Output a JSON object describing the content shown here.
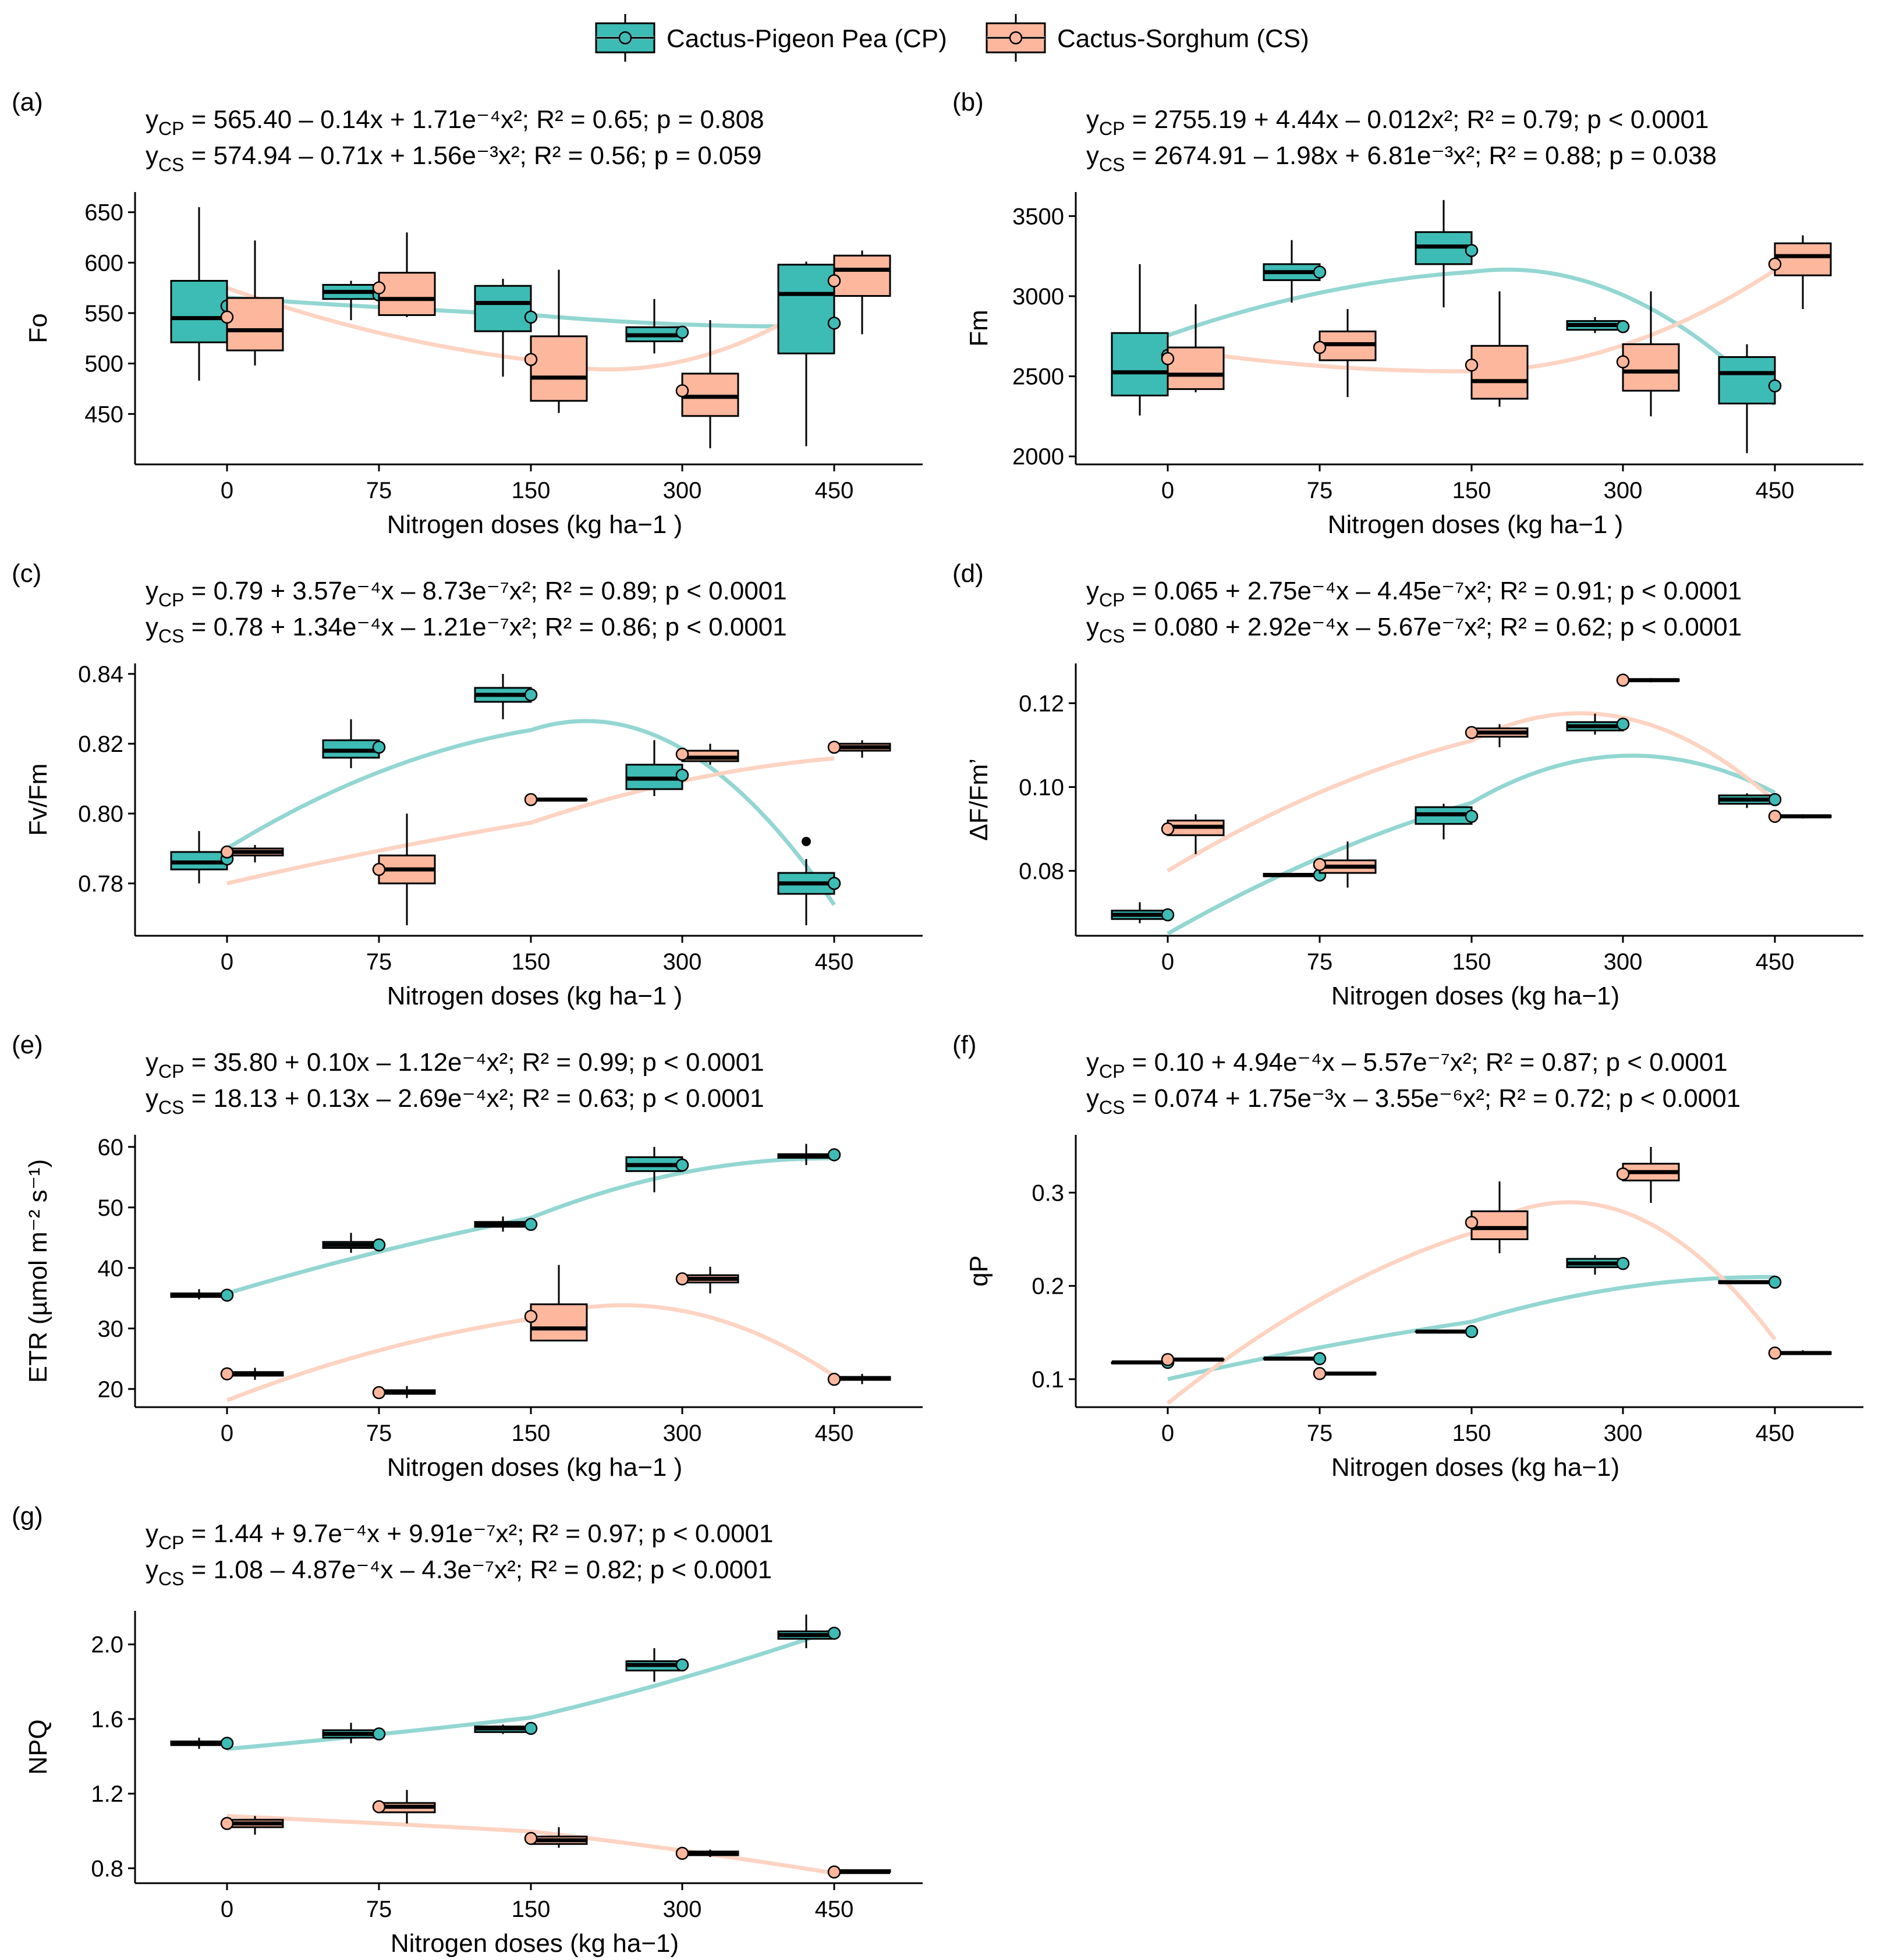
{
  "colors": {
    "cp": "#3dbcb5",
    "cp_dark": "#1f8f8a",
    "cs": "#fcb79d",
    "cs_dark": "#f6a386",
    "cp_line": "#93d6d2",
    "cs_line": "#fdd3c2"
  },
  "legend": {
    "cp": {
      "label": "Cactus-Pigeon Pea (CP)"
    },
    "cs": {
      "label": "Cactus-Sorghum (CS)"
    }
  },
  "chart_data": [
    {
      "id": "a",
      "type": "boxplot",
      "panel_label": "(a)",
      "ylabel": "Fo",
      "xlabel": "Nitrogen doses (kg ha−1 )",
      "categories": [
        "0",
        "75",
        "150",
        "300",
        "450"
      ],
      "ylim": [
        400,
        670
      ],
      "yticks": [
        "450",
        "500",
        "550",
        "600",
        "650"
      ],
      "eq_cp": {
        "y": "y",
        "sub": "CP",
        "text": " = 565.40 – 0.14x + 1.71e⁻⁴x²; R² = 0.65; p = 0.808"
      },
      "eq_cs": {
        "y": "y",
        "sub": "CS",
        "text": " = 574.94 – 0.71x + 1.56e⁻³x²; R² = 0.56; p = 0.059"
      },
      "series": [
        {
          "name": "CP",
          "boxes": [
            [
              483,
              521,
              545,
              582,
              655
            ],
            [
              543,
              564,
              571,
              578,
              582
            ],
            [
              487,
              532,
              560,
              577,
              584
            ],
            [
              510,
              522,
              528,
              536,
              564
            ],
            [
              418,
              510,
              569,
              598,
              601
            ]
          ],
          "means": [
            557,
            568,
            546,
            531,
            540
          ],
          "outliers": []
        },
        {
          "name": "CS",
          "boxes": [
            [
              498,
              513,
              533,
              565,
              622
            ],
            [
              546,
              548,
              564,
              590,
              630
            ],
            [
              451,
              463,
              486,
              527,
              593
            ],
            [
              416,
              448,
              467,
              490,
              543
            ],
            [
              529,
              567,
              593,
              607,
              612
            ]
          ],
          "means": [
            546,
            575,
            504,
            473,
            582
          ],
          "outliers": []
        }
      ],
      "fits": {
        "cp": [
          565.4,
          -0.14,
          0.000171
        ],
        "cs": [
          574.94,
          -0.71,
          0.00156
        ]
      }
    },
    {
      "id": "b",
      "type": "boxplot",
      "panel_label": "(b)",
      "ylabel": "Fm",
      "xlabel": "Nitrogen doses (kg ha−1 )",
      "categories": [
        "0",
        "75",
        "150",
        "300",
        "450"
      ],
      "ylim": [
        1950,
        3650
      ],
      "yticks": [
        "2000",
        "2500",
        "3000",
        "3500"
      ],
      "eq_cp": {
        "y": "y",
        "sub": "CP",
        "text": " = 2755.19 + 4.44x – 0.012x²; R² = 0.79; p < 0.0001"
      },
      "eq_cs": {
        "y": "y",
        "sub": "CS",
        "text": " = 2674.91 – 1.98x + 6.81e⁻³x²; R² = 0.88; p = 0.038"
      },
      "series": [
        {
          "name": "CP",
          "boxes": [
            [
              2255,
              2380,
              2525,
              2770,
              3200
            ],
            [
              2960,
              3100,
              3150,
              3200,
              3350
            ],
            [
              2930,
              3200,
              3310,
              3400,
              3600
            ],
            [
              2770,
              2790,
              2820,
              2845,
              2870
            ],
            [
              2020,
              2330,
              2520,
              2620,
              2700
            ]
          ],
          "means": [
            2630,
            3150,
            3285,
            2810,
            2440
          ],
          "outliers": []
        },
        {
          "name": "CS",
          "boxes": [
            [
              2400,
              2420,
              2510,
              2680,
              2950
            ],
            [
              2370,
              2600,
              2700,
              2780,
              2920
            ],
            [
              2310,
              2360,
              2470,
              2690,
              3030
            ],
            [
              2250,
              2410,
              2530,
              2700,
              3030
            ],
            [
              2920,
              3130,
              3250,
              3330,
              3380
            ]
          ],
          "means": [
            2610,
            2680,
            2570,
            2590,
            3200
          ],
          "outliers": []
        }
      ],
      "fits": {
        "cp": [
          2755.19,
          4.44,
          -0.012
        ],
        "cs": [
          2674.91,
          -1.98,
          0.00681
        ]
      }
    },
    {
      "id": "c",
      "type": "boxplot",
      "panel_label": "(c)",
      "ylabel": "Fv/Fm",
      "xlabel": "Nitrogen doses (kg ha−1 )",
      "categories": [
        "0",
        "75",
        "150",
        "300",
        "450"
      ],
      "ylim": [
        0.765,
        0.843
      ],
      "yticks": [
        "0.78",
        "0.80",
        "0.82",
        "0.84"
      ],
      "eq_cp": {
        "y": "y",
        "sub": "CP",
        "text": " = 0.79 + 3.57e⁻⁴x – 8.73e⁻⁷x²; R² = 0.89; p < 0.0001"
      },
      "eq_cs": {
        "y": "y",
        "sub": "CS",
        "text": " = 0.78 + 1.34e⁻⁴x – 1.21e⁻⁷x²; R² = 0.86; p < 0.0001"
      },
      "series": [
        {
          "name": "CP",
          "boxes": [
            [
              0.78,
              0.784,
              0.786,
              0.789,
              0.795
            ],
            [
              0.813,
              0.816,
              0.818,
              0.821,
              0.827
            ],
            [
              0.827,
              0.832,
              0.834,
              0.836,
              0.84
            ],
            [
              0.805,
              0.807,
              0.81,
              0.814,
              0.821
            ],
            [
              0.768,
              0.777,
              0.78,
              0.783,
              0.787
            ]
          ],
          "means": [
            0.787,
            0.819,
            0.834,
            0.811,
            0.78
          ],
          "outliers": [
            [],
            [],
            [],
            [],
            [
              0.792
            ]
          ]
        },
        {
          "name": "CS",
          "boxes": [
            [
              0.786,
              0.788,
              0.789,
              0.79,
              0.791
            ],
            [
              0.768,
              0.78,
              0.784,
              0.788,
              0.8
            ],
            [
              0.804,
              0.804,
              0.804,
              0.804,
              0.804
            ],
            [
              0.814,
              0.815,
              0.816,
              0.818,
              0.82
            ],
            [
              0.816,
              0.818,
              0.819,
              0.82,
              0.821
            ]
          ],
          "means": [
            0.789,
            0.784,
            0.804,
            0.817,
            0.819
          ],
          "outliers": []
        }
      ],
      "fits": {
        "cp": [
          0.79,
          0.000357,
          -8.73e-07
        ],
        "cs": [
          0.78,
          0.000134,
          -1.21e-07
        ]
      }
    },
    {
      "id": "d",
      "type": "boxplot",
      "panel_label": "(d)",
      "ylabel": "ΔF/Fm’",
      "xlabel": "Nitrogen doses (kg ha−1)",
      "categories": [
        "0",
        "75",
        "150",
        "300",
        "450"
      ],
      "ylim": [
        0.0645,
        0.1295
      ],
      "yticks": [
        "0.08",
        "0.10",
        "0.12"
      ],
      "eq_cp": {
        "y": "y",
        "sub": "CP",
        "text": " = 0.065 + 2.75e⁻⁴x – 4.45e⁻⁷x²; R² = 0.91; p < 0.0001"
      },
      "eq_cs": {
        "y": "y",
        "sub": "CS",
        "text": " = 0.080 + 2.92e⁻⁴x – 5.67e⁻⁷x²; R² = 0.62; p < 0.0001"
      },
      "series": [
        {
          "name": "CP",
          "boxes": [
            [
              0.0675,
              0.0685,
              0.0695,
              0.0705,
              0.0725
            ],
            [
              0.0785,
              0.0787,
              0.079,
              0.0793,
              0.0795
            ],
            [
              0.0875,
              0.0912,
              0.0935,
              0.0952,
              0.096
            ],
            [
              0.1125,
              0.1135,
              0.1145,
              0.1155,
              0.1175
            ],
            [
              0.095,
              0.096,
              0.097,
              0.098,
              0.0985
            ]
          ],
          "means": [
            0.0695,
            0.079,
            0.093,
            0.115,
            0.097
          ],
          "outliers": []
        },
        {
          "name": "CS",
          "boxes": [
            [
              0.084,
              0.0885,
              0.0905,
              0.092,
              0.0935
            ],
            [
              0.076,
              0.0795,
              0.081,
              0.0825,
              0.087
            ],
            [
              0.1095,
              0.112,
              0.113,
              0.114,
              0.115
            ],
            [
              0.125,
              0.1253,
              0.1255,
              0.1257,
              0.126
            ],
            [
              0.0925,
              0.0928,
              0.093,
              0.0932,
              0.0935
            ]
          ],
          "means": [
            0.09,
            0.0815,
            0.113,
            0.1255,
            0.093
          ],
          "outliers": []
        }
      ],
      "fits": {
        "cp": [
          0.065,
          0.000275,
          -4.45e-07
        ],
        "cs": [
          0.08,
          0.000292,
          -5.67e-07
        ]
      }
    },
    {
      "id": "e",
      "type": "boxplot",
      "panel_label": "(e)",
      "ylabel": "ETR (µmol m⁻² s⁻¹)",
      "xlabel": "Nitrogen doses (kg ha−1 )",
      "categories": [
        "0",
        "75",
        "150",
        "300",
        "450"
      ],
      "ylim": [
        17,
        62
      ],
      "yticks": [
        "20",
        "30",
        "40",
        "50",
        "60"
      ],
      "eq_cp": {
        "y": "y",
        "sub": "CP",
        "text": " = 35.80 + 0.10x – 1.12e⁻⁴x²; R² = 0.99; p < 0.0001"
      },
      "eq_cs": {
        "y": "y",
        "sub": "CS",
        "text": " = 18.13 + 0.13x – 2.69e⁻⁴x²; R² = 0.63; p < 0.0001"
      },
      "series": [
        {
          "name": "CP",
          "boxes": [
            [
              34.8,
              35.2,
              35.5,
              35.8,
              36.5
            ],
            [
              42.5,
              43.3,
              43.8,
              44.3,
              45.8
            ],
            [
              46.0,
              46.8,
              47.2,
              47.6,
              48.5
            ],
            [
              52.5,
              56.0,
              57.0,
              58.3,
              60.0
            ],
            [
              57.0,
              58.2,
              58.5,
              58.8,
              60.5
            ]
          ],
          "means": [
            35.5,
            43.8,
            47.2,
            57.0,
            58.7
          ],
          "outliers": []
        },
        {
          "name": "CS",
          "boxes": [
            [
              21.5,
              22.2,
              22.5,
              22.8,
              23.5
            ],
            [
              18.5,
              19.2,
              19.5,
              19.8,
              20.5
            ],
            [
              28.0,
              28.0,
              30.0,
              34.0,
              40.5
            ],
            [
              35.8,
              37.6,
              38.2,
              38.8,
              40.2
            ],
            [
              20.8,
              21.5,
              21.8,
              22.0,
              22.5
            ]
          ],
          "means": [
            22.5,
            19.4,
            32.0,
            38.2,
            21.6
          ],
          "outliers": []
        }
      ],
      "fits": {
        "cp": [
          35.8,
          0.1,
          -0.000112
        ],
        "cs": [
          18.13,
          0.13,
          -0.000269
        ]
      }
    },
    {
      "id": "f",
      "type": "boxplot",
      "panel_label": "(f)",
      "ylabel": "qP",
      "xlabel": "Nitrogen doses (kg ha−1)",
      "categories": [
        "0",
        "75",
        "150",
        "300",
        "450"
      ],
      "ylim": [
        0.07,
        0.362
      ],
      "yticks": [
        "0.1",
        "0.2",
        "0.3"
      ],
      "eq_cp": {
        "y": "y",
        "sub": "CP",
        "text": " = 0.10 + 4.94e⁻⁴x – 5.57e⁻⁷x²; R² = 0.87; p < 0.0001"
      },
      "eq_cs": {
        "y": "y",
        "sub": "CS",
        "text": " = 0.074 + 1.75e⁻³x – 3.55e⁻⁶x²; R² = 0.72; p < 0.0001"
      },
      "series": [
        {
          "name": "CP",
          "boxes": [
            [
              0.117,
              0.117,
              0.118,
              0.118,
              0.118
            ],
            [
              0.122,
              0.122,
              0.122,
              0.122,
              0.122
            ],
            [
              0.151,
              0.151,
              0.151,
              0.151,
              0.151
            ],
            [
              0.212,
              0.22,
              0.224,
              0.229,
              0.233
            ],
            [
              0.202,
              0.203,
              0.204,
              0.205,
              0.206
            ]
          ],
          "means": [
            0.118,
            0.122,
            0.151,
            0.224,
            0.204
          ],
          "outliers": []
        },
        {
          "name": "CS",
          "boxes": [
            [
              0.12,
              0.121,
              0.121,
              0.121,
              0.122
            ],
            [
              0.104,
              0.105,
              0.106,
              0.107,
              0.108
            ],
            [
              0.235,
              0.25,
              0.262,
              0.28,
              0.312
            ],
            [
              0.289,
              0.313,
              0.322,
              0.331,
              0.349
            ],
            [
              0.126,
              0.127,
              0.128,
              0.129,
              0.131
            ]
          ],
          "means": [
            0.121,
            0.106,
            0.268,
            0.32,
            0.128
          ],
          "outliers": []
        }
      ],
      "fits": {
        "cp": [
          0.1,
          0.000494,
          -5.57e-07
        ],
        "cs": [
          0.074,
          0.00175,
          -3.55e-06
        ]
      }
    },
    {
      "id": "g",
      "type": "boxplot",
      "panel_label": "(g)",
      "ylabel": "NPQ",
      "xlabel": "Nitrogen doses (kg ha−1)",
      "categories": [
        "0",
        "75",
        "150",
        "300",
        "450"
      ],
      "ylim": [
        0.72,
        2.18
      ],
      "yticks": [
        "0.8",
        "1.2",
        "1.6",
        "2.0"
      ],
      "eq_cp": {
        "y": "y",
        "sub": "CP",
        "text": " = 1.44 + 9.7e⁻⁴x + 9.91e⁻⁷x²; R² = 0.97; p < 0.0001"
      },
      "eq_cs": {
        "y": "y",
        "sub": "CS",
        "text": " = 1.08 – 4.87e⁻⁴x – 4.3e⁻⁷x²; R² = 0.82; p < 0.0001"
      },
      "series": [
        {
          "name": "CP",
          "boxes": [
            [
              1.44,
              1.46,
              1.47,
              1.48,
              1.5
            ],
            [
              1.47,
              1.5,
              1.52,
              1.54,
              1.58
            ],
            [
              1.52,
              1.53,
              1.55,
              1.56,
              1.57
            ],
            [
              1.8,
              1.86,
              1.89,
              1.91,
              1.98
            ],
            [
              1.98,
              2.03,
              2.05,
              2.07,
              2.16
            ]
          ],
          "means": [
            1.47,
            1.52,
            1.55,
            1.89,
            2.06
          ],
          "outliers": []
        },
        {
          "name": "CS",
          "boxes": [
            [
              0.98,
              1.02,
              1.04,
              1.06,
              1.08
            ],
            [
              1.04,
              1.1,
              1.13,
              1.15,
              1.22
            ],
            [
              0.91,
              0.93,
              0.95,
              0.97,
              1.02
            ],
            [
              0.86,
              0.87,
              0.88,
              0.89,
              0.9
            ],
            [
              0.77,
              0.78,
              0.78,
              0.79,
              0.79
            ]
          ],
          "means": [
            1.04,
            1.13,
            0.96,
            0.88,
            0.78
          ],
          "outliers": []
        }
      ],
      "fits": {
        "cp": [
          1.44,
          0.00097,
          9.91e-07
        ],
        "cs": [
          1.08,
          -0.000487,
          -4.3e-07
        ]
      }
    }
  ]
}
